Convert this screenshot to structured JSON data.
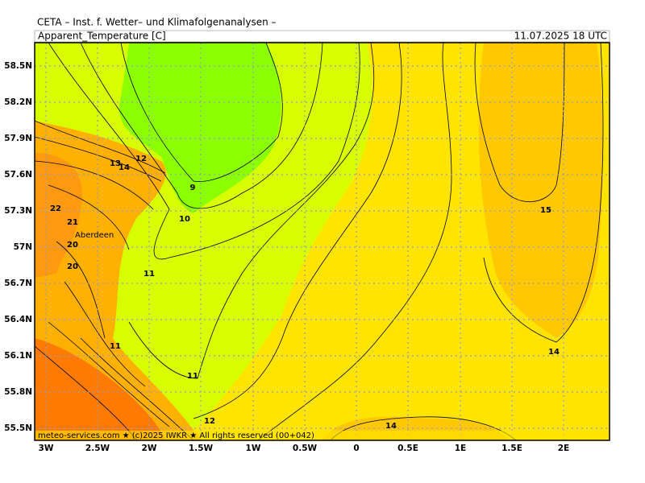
{
  "header": {
    "institute": "CETA – Inst. f. Wetter– und Klimafolgenanalysen –",
    "title": "Apparent_Temperature [C]",
    "datetime": "11.07.2025 18 UTC"
  },
  "map": {
    "lat_labels": [
      "58.5N",
      "58.2N",
      "57.9N",
      "57.6N",
      "57.3N",
      "57N",
      "56.7N",
      "56.4N",
      "56.1N",
      "55.8N",
      "55.5N"
    ],
    "lon_labels": [
      "3W",
      "2.5W",
      "2W",
      "1.5W",
      "1W",
      "0.5W",
      "0",
      "0.5E",
      "1E",
      "1.5E",
      "2E"
    ],
    "contour_labels": [
      "12",
      "13",
      "14",
      "9",
      "10",
      "22",
      "21",
      "20",
      "20",
      "11",
      "11",
      "11",
      "12",
      "14",
      "15",
      "14"
    ],
    "place": "Aberdeen"
  },
  "footer": "meteo-services.com ★ (c)2025 IWKR ★ All rights reserved (00+042)"
}
